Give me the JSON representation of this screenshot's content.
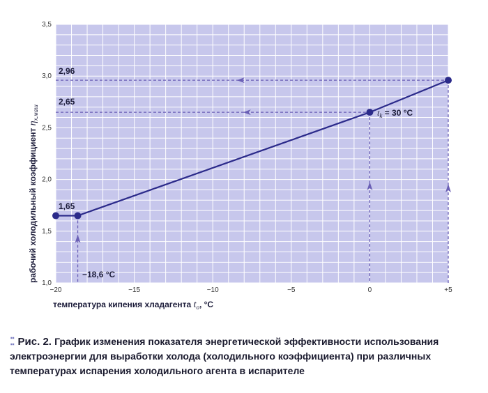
{
  "chart_data": {
    "type": "line",
    "xlabel_prefix": "температура кипения хладагента",
    "xlabel_symbol": "t",
    "xlabel_sub": "о",
    "xlabel_unit": ", °С",
    "ylabel_prefix": "рабочий холодильный коэффициент",
    "ylabel_symbol": "η",
    "ylabel_sub": "х.маш",
    "xlim": [
      -20,
      5
    ],
    "ylim": [
      1.0,
      3.5
    ],
    "x_ticks": [
      -20,
      -15,
      -10,
      -5,
      0,
      5
    ],
    "x_tick_labels": [
      "−20",
      "−15",
      "−10",
      "−5",
      "0",
      "+5"
    ],
    "y_ticks": [
      1.0,
      1.5,
      2.0,
      2.5,
      3.0,
      3.5
    ],
    "y_tick_labels": [
      "1,0",
      "1,5",
      "2,0",
      "2,5",
      "3,0",
      "3,5"
    ],
    "grid": true,
    "series": [
      {
        "x": [
          -20,
          -18.6,
          0,
          5
        ],
        "y": [
          1.65,
          1.65,
          2.65,
          2.96
        ]
      }
    ],
    "annotations": {
      "y_value_labels": [
        "2,96",
        "2,65",
        "1,65"
      ],
      "x_marker_label": "−18,6 °С",
      "tk_symbol": "t",
      "tk_sub": "k",
      "tk_text": " = 30 °С"
    },
    "colors": {
      "plot_bg": "#c7c7ec",
      "grid": "#ffffff",
      "line": "#2b2a8a",
      "dashed": "#6a5fb5"
    }
  },
  "caption": {
    "label": "Рис. 2.",
    "text": "График изменения показателя энергетической эффективности использования электроэнергии для выработки холода (холодильного коэффициента) при различных температурах испарения холодильного агента в испарителе"
  }
}
